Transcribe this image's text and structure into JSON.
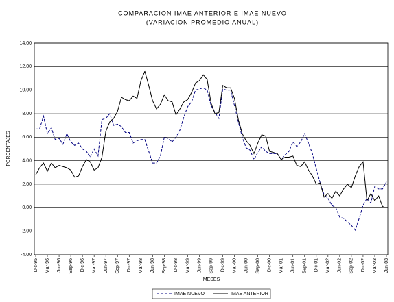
{
  "chart_data": {
    "type": "line",
    "title": "COMPARACION IMAE ANTERIOR E IMAE NUEVO",
    "subtitle": "(VARIACION PROMEDIO ANUAL)",
    "x_label": "MESES",
    "y_label": "PORCENTAJES",
    "categories": [
      "Dic-95",
      null,
      null,
      "Mar-96",
      null,
      null,
      "Jun-96",
      null,
      null,
      "Sep-96",
      null,
      null,
      "Dic-96",
      null,
      null,
      "Mar-97",
      null,
      null,
      "Jun-97",
      null,
      null,
      "Sep-97",
      null,
      null,
      "Dic-97",
      null,
      null,
      "Mar-98",
      null,
      null,
      "Jun-98",
      null,
      null,
      "Sep-98",
      null,
      null,
      "Dic-98",
      null,
      null,
      "Mar-99",
      null,
      null,
      "Jun-99",
      null,
      null,
      "Sep-99",
      null,
      null,
      "Dic-99",
      null,
      null,
      "Mar-00",
      null,
      null,
      "Jun-00",
      null,
      null,
      "Sep-00",
      null,
      null,
      "Dic-00",
      null,
      null,
      "Mar-01",
      null,
      null,
      "Jun-01",
      null,
      null,
      "Sep-01",
      null,
      null,
      "Dic-01",
      null,
      null,
      "Mar-02",
      null,
      null,
      "Jun-02",
      null,
      null,
      "Sep-02",
      null,
      null,
      "Dic-02",
      null,
      null,
      "Mar-03",
      null,
      null,
      "Jun-03"
    ],
    "series": [
      {
        "name": "IMAE NUEVO",
        "color": "#000080",
        "dash": true,
        "values": [
          6.7,
          6.7,
          7.8,
          6.3,
          6.8,
          5.8,
          5.9,
          5.4,
          6.3,
          5.6,
          5.3,
          5.5,
          5.0,
          4.8,
          4.3,
          5.0,
          4.4,
          7.5,
          7.6,
          8.0,
          7.0,
          7.1,
          6.9,
          6.4,
          6.4,
          5.5,
          5.7,
          5.8,
          5.8,
          4.8,
          3.8,
          3.8,
          4.4,
          6.0,
          5.9,
          5.6,
          6.0,
          6.6,
          7.7,
          8.6,
          9.0,
          10.0,
          10.1,
          10.2,
          10.0,
          8.7,
          8.1,
          7.6,
          10.1,
          10.0,
          10.0,
          8.7,
          7.3,
          6.0,
          5.1,
          4.9,
          4.1,
          4.7,
          5.2,
          4.8,
          4.6,
          4.6,
          4.6,
          4.1,
          4.5,
          4.8,
          5.6,
          5.2,
          5.6,
          6.3,
          5.5,
          4.6,
          3.3,
          2.1,
          1.1,
          0.8,
          0.2,
          0.0,
          -0.8,
          -0.9,
          -1.2,
          -1.5,
          -1.9,
          -0.9,
          0.2,
          0.8,
          0.4,
          1.8,
          1.6,
          1.6,
          2.2
        ]
      },
      {
        "name": "IMAE ANTERIOR",
        "color": "#000000",
        "dash": false,
        "values": [
          2.8,
          3.4,
          3.8,
          3.1,
          3.8,
          3.4,
          3.6,
          3.5,
          3.4,
          3.2,
          2.6,
          2.7,
          3.5,
          4.1,
          3.9,
          3.2,
          3.4,
          4.3,
          6.5,
          7.3,
          7.6,
          8.2,
          9.4,
          9.2,
          9.1,
          9.5,
          9.3,
          10.8,
          11.6,
          10.4,
          9.1,
          8.4,
          8.8,
          9.6,
          9.1,
          9.0,
          7.9,
          8.4,
          9.0,
          9.2,
          9.8,
          10.6,
          10.8,
          11.3,
          10.9,
          8.9,
          8.0,
          8.1,
          10.4,
          10.2,
          10.2,
          9.3,
          7.5,
          6.3,
          5.7,
          5.3,
          4.6,
          5.5,
          6.2,
          6.1,
          4.8,
          4.7,
          4.6,
          4.1,
          4.3,
          4.3,
          4.4,
          3.6,
          3.5,
          3.9,
          3.2,
          2.7,
          2.0,
          2.1,
          0.9,
          1.2,
          0.8,
          1.4,
          1.0,
          1.6,
          2.0,
          1.7,
          2.7,
          3.5,
          3.9,
          0.6,
          1.2,
          0.6,
          1.0,
          0.1,
          0.0
        ]
      }
    ],
    "ylim": [
      -4,
      14
    ],
    "yticks": [
      {
        "value": -4,
        "label": "-4.00"
      },
      {
        "value": -2,
        "label": "-2.00"
      },
      {
        "value": 0,
        "label": "0.00"
      },
      {
        "value": 2,
        "label": "2.00"
      },
      {
        "value": 4,
        "label": "4.00"
      },
      {
        "value": 6,
        "label": "6.00"
      },
      {
        "value": 8,
        "label": "8.00"
      },
      {
        "value": 10,
        "label": "10.00"
      },
      {
        "value": 12,
        "label": "12.00"
      },
      {
        "value": 14,
        "label": "14.00"
      }
    ],
    "grid": true,
    "legend": "bottom"
  }
}
